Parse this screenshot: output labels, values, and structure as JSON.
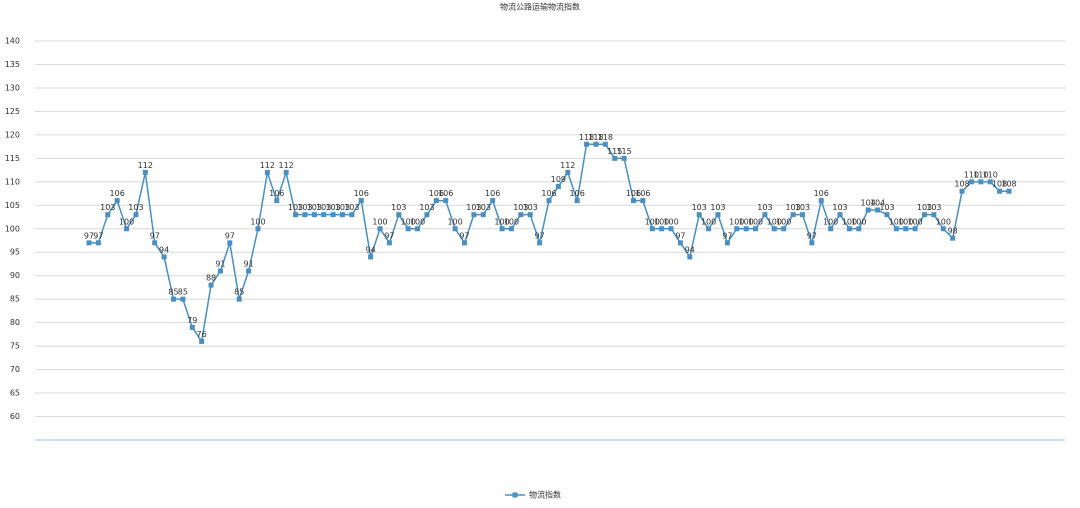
{
  "chart_data": {
    "type": "line",
    "title": "物流公路运输物流指数",
    "categories": [
      null,
      null,
      null,
      null,
      null,
      null,
      null,
      null,
      null,
      null,
      null,
      null,
      null,
      null,
      null,
      null,
      null,
      null,
      null,
      null,
      null,
      null,
      null,
      null,
      null,
      null,
      null,
      null,
      null,
      null,
      null,
      null,
      null,
      null,
      null,
      null,
      null,
      null,
      null,
      null,
      null,
      null,
      null,
      null,
      null,
      null,
      null,
      null,
      null,
      null,
      null,
      null,
      null,
      null,
      null,
      null,
      null,
      null,
      null,
      null,
      null,
      null,
      null,
      null,
      null,
      null,
      null,
      null,
      null,
      null,
      null,
      null,
      null,
      null,
      null,
      null,
      null,
      null,
      null,
      null,
      null,
      null,
      null,
      null,
      null,
      null,
      null,
      null,
      null,
      null,
      null,
      null,
      null,
      null,
      null,
      null,
      null,
      null,
      null
    ],
    "series": [
      {
        "name": "物流指数",
        "color": "#4a8fc0",
        "values": [
          97,
          97,
          103,
          106,
          100,
          103,
          112,
          97,
          94,
          85,
          85,
          79,
          76,
          88,
          91,
          97,
          85,
          91,
          100,
          112,
          106,
          112,
          103,
          103,
          103,
          103,
          103,
          103,
          103,
          106,
          94,
          100,
          97,
          103,
          100,
          100,
          103,
          106,
          106,
          100,
          97,
          103,
          103,
          106,
          100,
          100,
          103,
          103,
          97,
          106,
          109,
          112,
          106,
          118,
          118,
          118,
          115,
          115,
          106,
          106,
          100,
          100,
          100,
          97,
          94,
          103,
          100,
          103,
          97,
          100,
          100,
          100,
          103,
          100,
          100,
          103,
          103,
          97,
          106,
          100,
          103,
          100,
          100,
          104,
          104,
          103,
          100,
          100,
          100,
          103,
          103,
          100,
          98,
          108,
          110,
          110,
          110,
          108,
          108
        ]
      }
    ],
    "ylim": [
      55,
      140
    ],
    "yticks": [
      60,
      65,
      70,
      75,
      80,
      85,
      90,
      95,
      100,
      105,
      110,
      115,
      120,
      125,
      130,
      135,
      140
    ],
    "grid": true,
    "legend": "bottom"
  }
}
